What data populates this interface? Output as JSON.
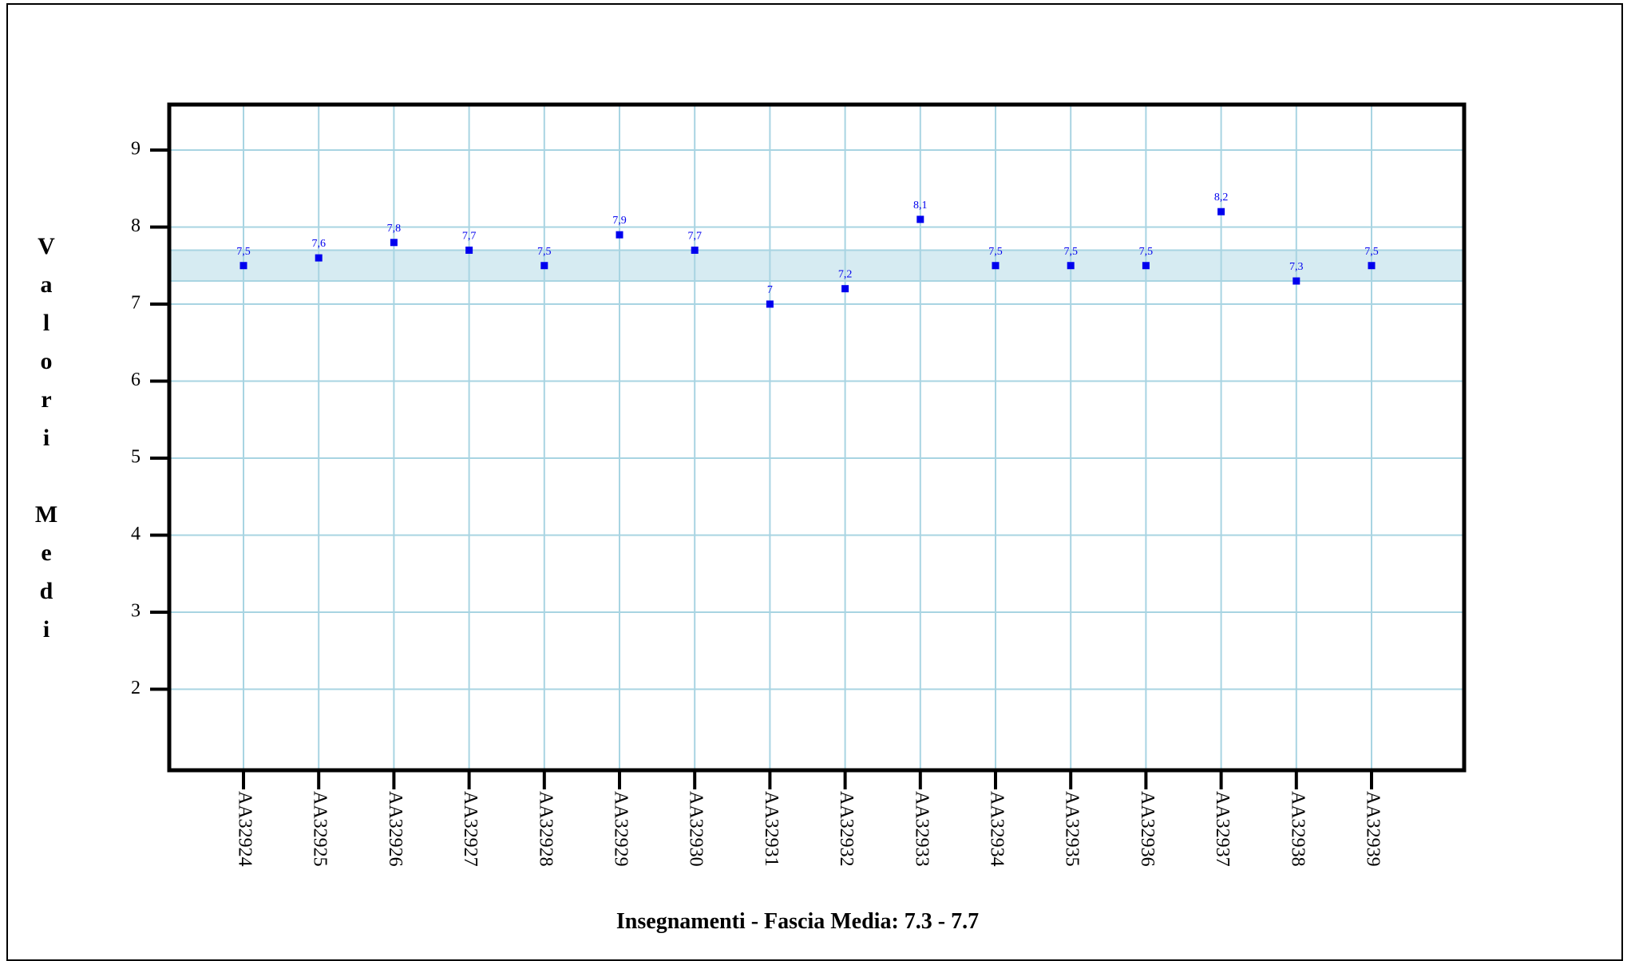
{
  "chart_data": {
    "type": "scatter",
    "title": "",
    "xlabel": "Insegnamenti - Fascia Media: 7.3 - 7.7",
    "ylabel": "Valori Medi",
    "ylim": [
      1,
      9.7
    ],
    "yticks": [
      2,
      3,
      4,
      5,
      6,
      7,
      8,
      9
    ],
    "grid": true,
    "band": {
      "low": 7.3,
      "high": 7.7,
      "color": "#d6ebf2"
    },
    "colors": {
      "grid": "#a8d4e2",
      "marker": "#0000ee",
      "axis": "#000000"
    },
    "categories": [
      "AA32924",
      "AA32925",
      "AA32926",
      "AA32927",
      "AA32928",
      "AA32929",
      "AA32930",
      "AA32931",
      "AA32932",
      "AA32933",
      "AA32934",
      "AA32935",
      "AA32936",
      "AA32937",
      "AA32938",
      "AA32939"
    ],
    "values": [
      7.5,
      7.6,
      7.8,
      7.7,
      7.5,
      7.9,
      7.7,
      7,
      7.2,
      8.1,
      7.5,
      7.5,
      7.5,
      8.2,
      7.3,
      7.5
    ],
    "labels": [
      "7,5",
      "7,6",
      "7,8",
      "7,7",
      "7,5",
      "7,9",
      "7,7",
      "7",
      "7,2",
      "8,1",
      "7,5",
      "7,5",
      "7,5",
      "8,2",
      "7,3",
      "7,5"
    ]
  }
}
